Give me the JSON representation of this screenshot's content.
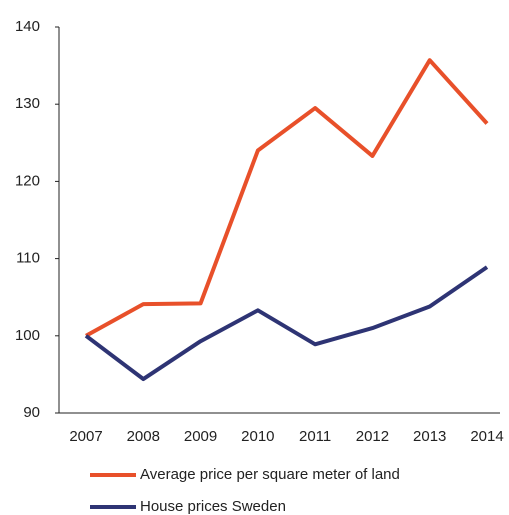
{
  "chart_data": {
    "type": "line",
    "categories": [
      "2007",
      "2008",
      "2009",
      "2010",
      "2011",
      "2012",
      "2013",
      "2014"
    ],
    "series": [
      {
        "name": "Average price per square meter of land",
        "color": "#e8502a",
        "values": [
          100,
          104.1,
          104.2,
          124.0,
          129.5,
          123.3,
          135.7,
          127.5
        ]
      },
      {
        "name": "House prices Sweden",
        "color": "#2e3474",
        "values": [
          100,
          94.4,
          99.3,
          103.3,
          98.9,
          101.0,
          103.8,
          108.9
        ]
      }
    ],
    "ylim": [
      90,
      140
    ],
    "yticks": [
      90,
      100,
      110,
      120,
      130,
      140
    ],
    "grid": false,
    "legend": "bottom"
  }
}
